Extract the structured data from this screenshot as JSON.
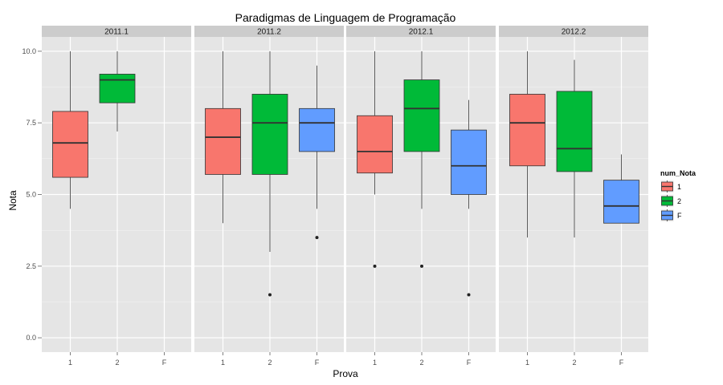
{
  "chart_data": {
    "type": "boxplot",
    "title": "Paradigmas de Linguagem de Programação",
    "xlabel": "Prova",
    "ylabel": "Nota",
    "ylim": [
      -0.5,
      10.5
    ],
    "yticks": [
      "0.0",
      "2.5",
      "5.0",
      "7.5",
      "10.0"
    ],
    "ytick_values": [
      0,
      2.5,
      5,
      7.5,
      10
    ],
    "categories": [
      "1",
      "2",
      "F"
    ],
    "grid": true,
    "legend": {
      "title": "num_Nota",
      "position": "right",
      "entries": [
        {
          "label": "1",
          "color": "#F8766D"
        },
        {
          "label": "2",
          "color": "#00BA38"
        },
        {
          "label": "F",
          "color": "#619CFF"
        }
      ]
    },
    "panels": [
      {
        "label": "2011.1",
        "boxes": [
          {
            "category": "1",
            "min": 4.5,
            "q1": 5.6,
            "median": 6.8,
            "q3": 7.9,
            "max": 10.0,
            "outliers": []
          },
          {
            "category": "2",
            "min": 7.2,
            "q1": 8.2,
            "median": 9.0,
            "q3": 9.2,
            "max": 10.0,
            "outliers": []
          }
        ]
      },
      {
        "label": "2011.2",
        "boxes": [
          {
            "category": "1",
            "min": 4.0,
            "q1": 5.7,
            "median": 7.0,
            "q3": 8.0,
            "max": 10.0,
            "outliers": []
          },
          {
            "category": "2",
            "min": 3.0,
            "q1": 5.7,
            "median": 7.5,
            "q3": 8.5,
            "max": 10.0,
            "outliers": [
              1.5
            ]
          },
          {
            "category": "F",
            "min": 4.5,
            "q1": 6.5,
            "median": 7.5,
            "q3": 8.0,
            "max": 9.5,
            "outliers": [
              3.5
            ]
          }
        ]
      },
      {
        "label": "2012.1",
        "boxes": [
          {
            "category": "1",
            "min": 5.0,
            "q1": 5.75,
            "median": 6.5,
            "q3": 7.75,
            "max": 10.0,
            "outliers": [
              2.5
            ]
          },
          {
            "category": "2",
            "min": 4.5,
            "q1": 6.5,
            "median": 8.0,
            "q3": 9.0,
            "max": 10.0,
            "outliers": [
              2.5
            ]
          },
          {
            "category": "F",
            "min": 4.5,
            "q1": 5.0,
            "median": 6.0,
            "q3": 7.25,
            "max": 8.3,
            "outliers": [
              1.5
            ]
          }
        ]
      },
      {
        "label": "2012.2",
        "boxes": [
          {
            "category": "1",
            "min": 3.5,
            "q1": 6.0,
            "median": 7.5,
            "q3": 8.5,
            "max": 10.0,
            "outliers": []
          },
          {
            "category": "2",
            "min": 3.5,
            "q1": 5.8,
            "median": 6.6,
            "q3": 8.6,
            "max": 9.7,
            "outliers": []
          },
          {
            "category": "F",
            "min": 4.0,
            "q1": 4.0,
            "median": 4.6,
            "q3": 5.5,
            "max": 6.4,
            "outliers": []
          }
        ]
      }
    ]
  }
}
